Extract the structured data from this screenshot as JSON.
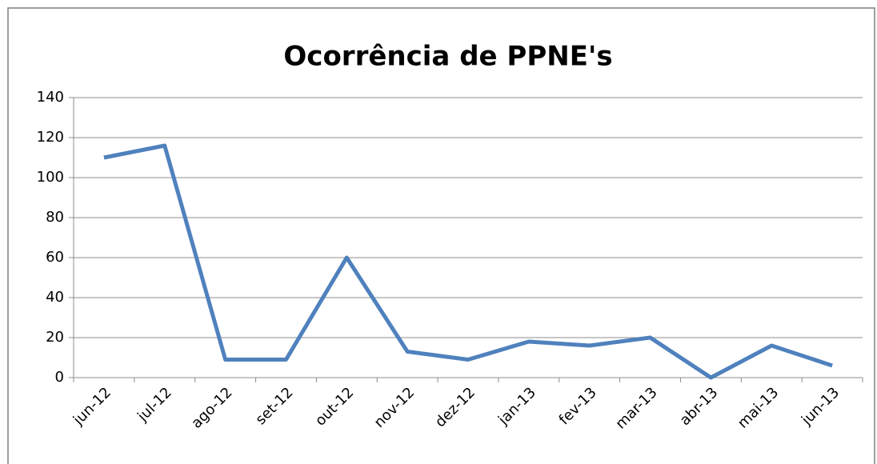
{
  "chart_data": {
    "type": "line",
    "title": "Ocorrência de PPNE's",
    "categories": [
      "jun-12",
      "jul-12",
      "ago-12",
      "set-12",
      "out-12",
      "nov-12",
      "dez-12",
      "jan-13",
      "fev-13",
      "mar-13",
      "abr-13",
      "mai-13",
      "jun-13"
    ],
    "series": [
      {
        "color": "#4f81bd",
        "values": [
          110,
          116,
          9,
          9,
          60,
          13,
          9,
          18,
          16,
          20,
          0,
          16,
          6
        ]
      }
    ],
    "ylim": [
      0,
      140
    ],
    "yticks": [
      0,
      20,
      40,
      60,
      80,
      100,
      120,
      140
    ],
    "grid": true
  }
}
